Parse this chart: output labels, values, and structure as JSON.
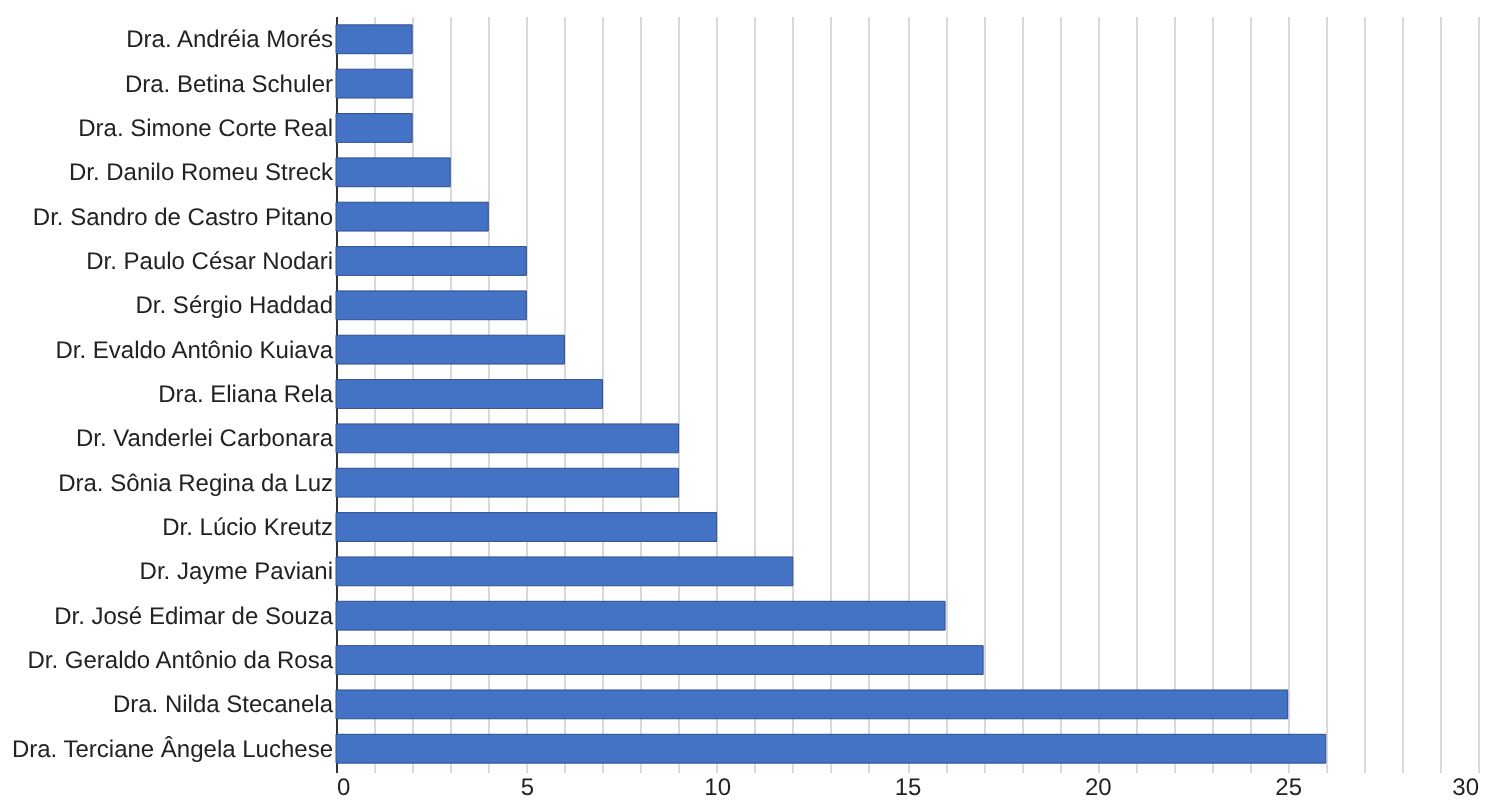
{
  "chart_data": {
    "type": "bar",
    "orientation": "horizontal",
    "categories": [
      "Dra. Andréia Morés",
      "Dra. Betina Schuler",
      "Dra. Simone Corte Real",
      "Dr. Danilo Romeu Streck",
      "Dr. Sandro de Castro Pitano",
      "Dr. Paulo César Nodari",
      "Dr. Sérgio Haddad",
      "Dr. Evaldo Antônio Kuiava",
      "Dra. Eliana Rela",
      "Dr. Vanderlei Carbonara",
      "Dra. Sônia Regina da Luz",
      "Dr. Lúcio Kreutz",
      "Dr. Jayme Paviani",
      "Dr. José Edimar de Souza",
      "Dr. Geraldo Antônio da Rosa",
      "Dra. Nilda Stecanela",
      "Dra. Terciane Ângela Luchese"
    ],
    "values": [
      2,
      2,
      2,
      3,
      4,
      5,
      5,
      6,
      7,
      9,
      9,
      10,
      12,
      16,
      17,
      25,
      26
    ],
    "color": "#4472c4",
    "xlim": [
      0,
      30
    ],
    "xticks": [
      0,
      {
        "value": 1,
        "label": null
      },
      {
        "value": 2,
        "label": null
      },
      {
        "value": 3,
        "label": null
      },
      {
        "value": 4,
        "label": null
      },
      5,
      {
        "value": 6,
        "label": null
      },
      {
        "value": 7,
        "label": null
      },
      {
        "value": 8,
        "label": null
      },
      {
        "value": 9,
        "label": null
      },
      10,
      {
        "value": 11,
        "label": null
      },
      {
        "value": 12,
        "label": null
      },
      {
        "value": 13,
        "label": null
      },
      {
        "value": 14,
        "label": null
      },
      15,
      {
        "value": 16,
        "label": null
      },
      {
        "value": 17,
        "label": null
      },
      {
        "value": 18,
        "label": null
      },
      {
        "value": 19,
        "label": null
      },
      20,
      {
        "value": 21,
        "label": null
      },
      {
        "value": 22,
        "label": null
      },
      {
        "value": 23,
        "label": null
      },
      {
        "value": 24,
        "label": null
      },
      25,
      {
        "value": 26,
        "label": null
      },
      {
        "value": 27,
        "label": null
      },
      {
        "value": 28,
        "label": null
      },
      {
        "value": 29,
        "label": null
      },
      30
    ],
    "grid": "x"
  }
}
